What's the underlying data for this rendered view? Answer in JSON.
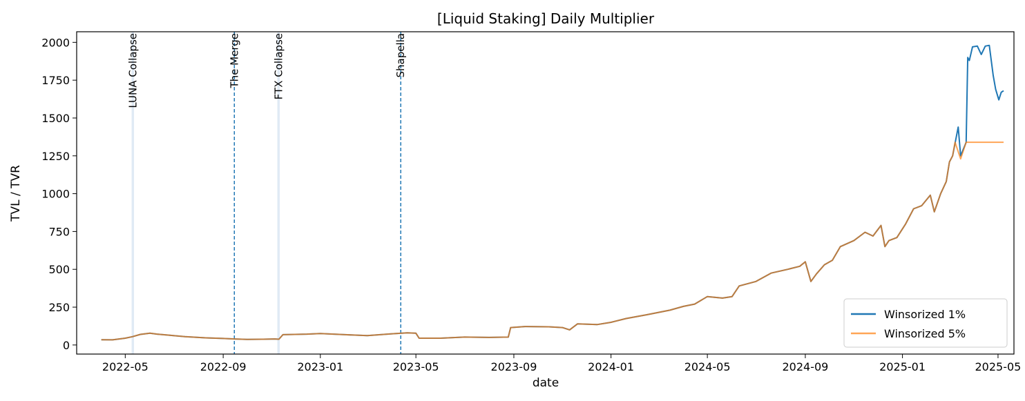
{
  "chart_data": {
    "type": "line",
    "title": "[Liquid Staking] Daily Multiplier",
    "xlabel": "date",
    "ylabel": "TVL / TVR",
    "xlim": [
      "2022-03-01",
      "2025-05-21"
    ],
    "ylim": [
      -60,
      2070
    ],
    "grid": false,
    "legend_position": "lower-right",
    "x_ticks": [
      "2022-05",
      "2022-09",
      "2023-01",
      "2023-05",
      "2023-09",
      "2024-01",
      "2024-05",
      "2024-09",
      "2025-01",
      "2025-05"
    ],
    "x_tick_dates": [
      "2022-05-01",
      "2022-09-01",
      "2023-01-01",
      "2023-05-01",
      "2023-09-01",
      "2024-01-01",
      "2024-05-01",
      "2024-09-01",
      "2025-01-01",
      "2025-05-01"
    ],
    "y_ticks": [
      0,
      250,
      500,
      750,
      1000,
      1250,
      1500,
      1750,
      2000
    ],
    "colors": {
      "series1": "#1f77b4",
      "series2": "#ff7f0e",
      "band": "#c6d8ec"
    },
    "events": [
      {
        "label": "LUNA Collapse",
        "start": "2022-05-09",
        "end": "2022-05-12",
        "style": "band"
      },
      {
        "label": "The Merge",
        "date": "2022-09-15",
        "style": "dashed"
      },
      {
        "label": "FTX Collapse",
        "start": "2022-11-08",
        "end": "2022-11-11",
        "style": "band"
      },
      {
        "label": "Shapella",
        "date": "2023-04-12",
        "style": "dashed"
      }
    ],
    "series": [
      {
        "name": "Winsorized 1%",
        "color": "#1f77b4",
        "points": [
          [
            "2022-04-01",
            35
          ],
          [
            "2022-04-15",
            34
          ],
          [
            "2022-05-01",
            45
          ],
          [
            "2022-05-10",
            55
          ],
          [
            "2022-05-20",
            70
          ],
          [
            "2022-06-01",
            78
          ],
          [
            "2022-06-10",
            72
          ],
          [
            "2022-06-25",
            65
          ],
          [
            "2022-07-15",
            55
          ],
          [
            "2022-08-10",
            47
          ],
          [
            "2022-09-01",
            43
          ],
          [
            "2022-09-15",
            40
          ],
          [
            "2022-10-01",
            37
          ],
          [
            "2022-10-20",
            38
          ],
          [
            "2022-11-05",
            40
          ],
          [
            "2022-11-10",
            38
          ],
          [
            "2022-11-15",
            68
          ],
          [
            "2022-12-15",
            72
          ],
          [
            "2023-01-01",
            76
          ],
          [
            "2023-02-01",
            68
          ],
          [
            "2023-03-01",
            62
          ],
          [
            "2023-04-01",
            74
          ],
          [
            "2023-04-20",
            80
          ],
          [
            "2023-05-01",
            78
          ],
          [
            "2023-05-05",
            45
          ],
          [
            "2023-06-01",
            45
          ],
          [
            "2023-07-01",
            52
          ],
          [
            "2023-08-01",
            50
          ],
          [
            "2023-08-25",
            52
          ],
          [
            "2023-08-28",
            115
          ],
          [
            "2023-09-15",
            122
          ],
          [
            "2023-10-15",
            120
          ],
          [
            "2023-11-01",
            115
          ],
          [
            "2023-11-10",
            100
          ],
          [
            "2023-11-20",
            140
          ],
          [
            "2023-12-15",
            135
          ],
          [
            "2024-01-01",
            150
          ],
          [
            "2024-01-20",
            175
          ],
          [
            "2024-02-15",
            200
          ],
          [
            "2024-03-15",
            230
          ],
          [
            "2024-04-01",
            255
          ],
          [
            "2024-04-15",
            270
          ],
          [
            "2024-05-01",
            320
          ],
          [
            "2024-05-20",
            310
          ],
          [
            "2024-06-01",
            320
          ],
          [
            "2024-06-10",
            390
          ],
          [
            "2024-07-01",
            420
          ],
          [
            "2024-07-20",
            475
          ],
          [
            "2024-08-10",
            500
          ],
          [
            "2024-08-25",
            520
          ],
          [
            "2024-09-01",
            550
          ],
          [
            "2024-09-08",
            420
          ],
          [
            "2024-09-15",
            470
          ],
          [
            "2024-09-25",
            530
          ],
          [
            "2024-10-05",
            560
          ],
          [
            "2024-10-15",
            650
          ],
          [
            "2024-11-01",
            690
          ],
          [
            "2024-11-15",
            745
          ],
          [
            "2024-11-25",
            720
          ],
          [
            "2024-12-05",
            790
          ],
          [
            "2024-12-10",
            650
          ],
          [
            "2024-12-15",
            690
          ],
          [
            "2024-12-25",
            710
          ],
          [
            "2025-01-05",
            800
          ],
          [
            "2025-01-15",
            900
          ],
          [
            "2025-01-25",
            920
          ],
          [
            "2025-02-05",
            990
          ],
          [
            "2025-02-10",
            880
          ],
          [
            "2025-02-18",
            1000
          ],
          [
            "2025-02-25",
            1080
          ],
          [
            "2025-03-01",
            1210
          ],
          [
            "2025-03-05",
            1250
          ],
          [
            "2025-03-12",
            1440
          ],
          [
            "2025-03-15",
            1250
          ],
          [
            "2025-03-22",
            1340
          ],
          [
            "2025-03-24",
            1900
          ],
          [
            "2025-03-26",
            1880
          ],
          [
            "2025-03-30",
            1970
          ],
          [
            "2025-04-05",
            1975
          ],
          [
            "2025-04-10",
            1920
          ],
          [
            "2025-04-15",
            1975
          ],
          [
            "2025-04-20",
            1980
          ],
          [
            "2025-04-25",
            1780
          ],
          [
            "2025-04-28",
            1690
          ],
          [
            "2025-05-02",
            1620
          ],
          [
            "2025-05-05",
            1670
          ],
          [
            "2025-05-08",
            1680
          ]
        ]
      },
      {
        "name": "Winsorized 5%",
        "color": "#ff7f0e",
        "points": [
          [
            "2022-04-01",
            35
          ],
          [
            "2022-04-15",
            34
          ],
          [
            "2022-05-01",
            45
          ],
          [
            "2022-05-10",
            55
          ],
          [
            "2022-05-20",
            70
          ],
          [
            "2022-06-01",
            78
          ],
          [
            "2022-06-10",
            72
          ],
          [
            "2022-06-25",
            65
          ],
          [
            "2022-07-15",
            55
          ],
          [
            "2022-08-10",
            47
          ],
          [
            "2022-09-01",
            43
          ],
          [
            "2022-09-15",
            40
          ],
          [
            "2022-10-01",
            37
          ],
          [
            "2022-10-20",
            38
          ],
          [
            "2022-11-05",
            40
          ],
          [
            "2022-11-10",
            38
          ],
          [
            "2022-11-15",
            68
          ],
          [
            "2022-12-15",
            72
          ],
          [
            "2023-01-01",
            76
          ],
          [
            "2023-02-01",
            68
          ],
          [
            "2023-03-01",
            62
          ],
          [
            "2023-04-01",
            74
          ],
          [
            "2023-04-20",
            80
          ],
          [
            "2023-05-01",
            78
          ],
          [
            "2023-05-05",
            45
          ],
          [
            "2023-06-01",
            45
          ],
          [
            "2023-07-01",
            52
          ],
          [
            "2023-08-01",
            50
          ],
          [
            "2023-08-25",
            52
          ],
          [
            "2023-08-28",
            115
          ],
          [
            "2023-09-15",
            122
          ],
          [
            "2023-10-15",
            120
          ],
          [
            "2023-11-01",
            115
          ],
          [
            "2023-11-10",
            100
          ],
          [
            "2023-11-20",
            140
          ],
          [
            "2023-12-15",
            135
          ],
          [
            "2024-01-01",
            150
          ],
          [
            "2024-01-20",
            175
          ],
          [
            "2024-02-15",
            200
          ],
          [
            "2024-03-15",
            230
          ],
          [
            "2024-04-01",
            255
          ],
          [
            "2024-04-15",
            270
          ],
          [
            "2024-05-01",
            320
          ],
          [
            "2024-05-20",
            310
          ],
          [
            "2024-06-01",
            320
          ],
          [
            "2024-06-10",
            390
          ],
          [
            "2024-07-01",
            420
          ],
          [
            "2024-07-20",
            475
          ],
          [
            "2024-08-10",
            500
          ],
          [
            "2024-08-25",
            520
          ],
          [
            "2024-09-01",
            550
          ],
          [
            "2024-09-08",
            420
          ],
          [
            "2024-09-15",
            470
          ],
          [
            "2024-09-25",
            530
          ],
          [
            "2024-10-05",
            560
          ],
          [
            "2024-10-15",
            650
          ],
          [
            "2024-11-01",
            690
          ],
          [
            "2024-11-15",
            745
          ],
          [
            "2024-11-25",
            720
          ],
          [
            "2024-12-05",
            790
          ],
          [
            "2024-12-10",
            650
          ],
          [
            "2024-12-15",
            690
          ],
          [
            "2024-12-25",
            710
          ],
          [
            "2025-01-05",
            800
          ],
          [
            "2025-01-15",
            900
          ],
          [
            "2025-01-25",
            920
          ],
          [
            "2025-02-05",
            990
          ],
          [
            "2025-02-10",
            880
          ],
          [
            "2025-02-18",
            1000
          ],
          [
            "2025-02-25",
            1080
          ],
          [
            "2025-03-01",
            1210
          ],
          [
            "2025-03-05",
            1250
          ],
          [
            "2025-03-08",
            1340
          ],
          [
            "2025-03-15",
            1230
          ],
          [
            "2025-03-22",
            1340
          ],
          [
            "2025-04-01",
            1340
          ],
          [
            "2025-05-08",
            1340
          ]
        ]
      }
    ]
  }
}
